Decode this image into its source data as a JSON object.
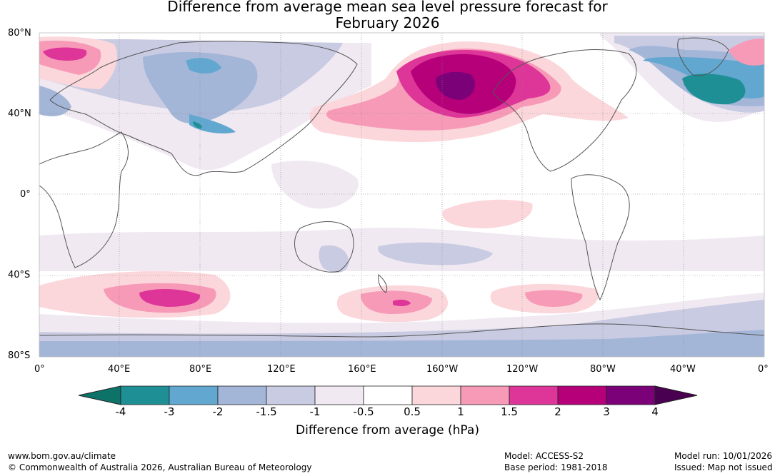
{
  "title": {
    "line1": "Difference from average mean sea level pressure forecast for",
    "line2": "February 2026"
  },
  "map": {
    "lat_labels": [
      "80°N",
      "40°N",
      "0°",
      "40°S",
      "80°S"
    ],
    "lon_labels": [
      "0°",
      "40°E",
      "80°E",
      "120°E",
      "160°E",
      "160°W",
      "120°W",
      "80°W",
      "40°W",
      "0°"
    ]
  },
  "colorbar": {
    "ticks": [
      "-4",
      "-3",
      "-2",
      "-1.5",
      "-1",
      "-0.5",
      "0.5",
      "1",
      "1.5",
      "2",
      "3",
      "4"
    ],
    "colors": [
      "#0d7368",
      "#1f8f96",
      "#62a7d0",
      "#a3b6d8",
      "#c9cbe2",
      "#f0e9f2",
      "#ffffff",
      "#fbd7db",
      "#f79ab8",
      "#de3598",
      "#b5007a",
      "#7a0177",
      "#4a0050"
    ],
    "label": "Difference from average (hPa)"
  },
  "footer": {
    "website": "www.bom.gov.au/climate",
    "copyright": "© Commonwealth of Australia 2026, Australian Bureau of Meteorology",
    "model": "Model: ACCESS-S2",
    "base_period": "Base period: 1981-2018",
    "model_run": "Model run: 10/01/2026",
    "issued": "Issued: Map not issued"
  }
}
